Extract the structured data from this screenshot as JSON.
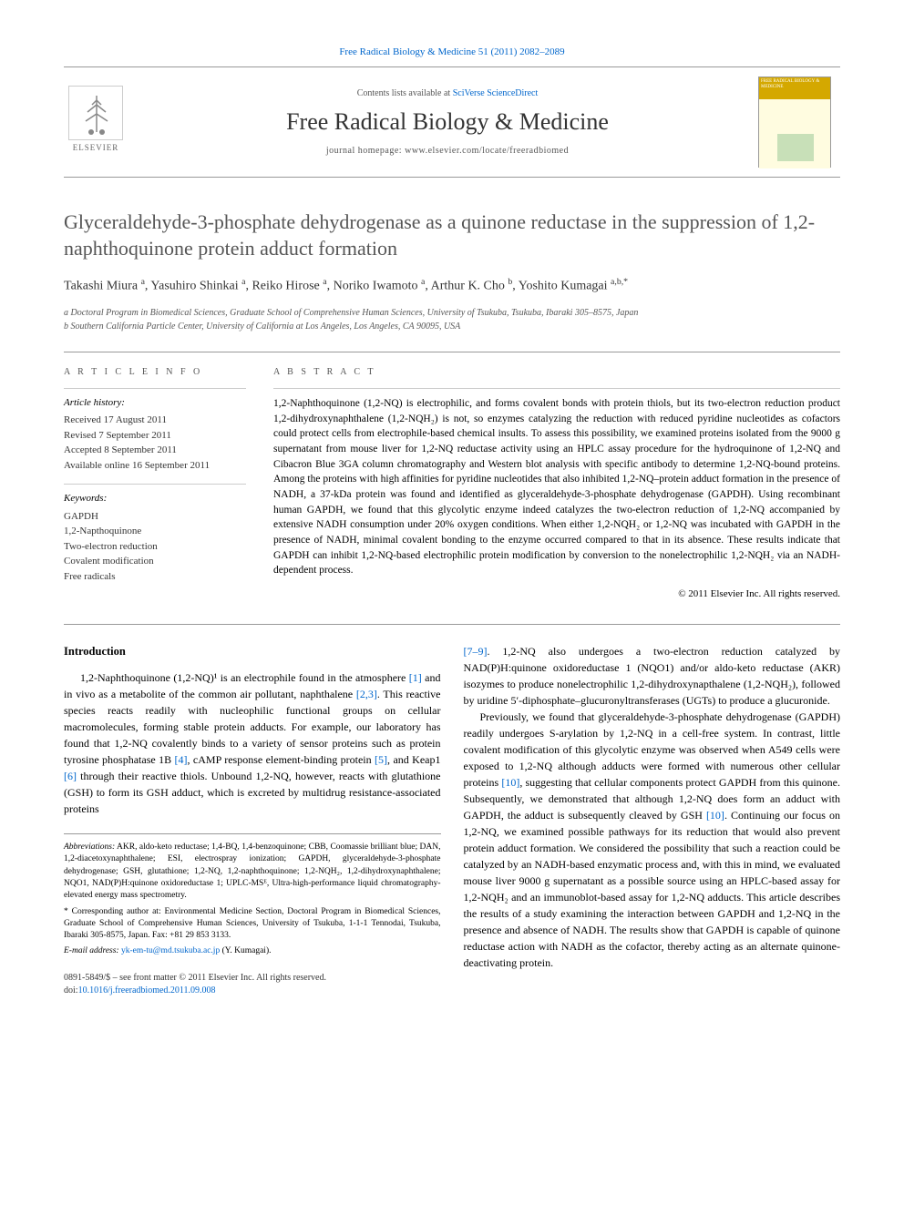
{
  "top_link_text": "Free Radical Biology & Medicine 51 (2011) 2082–2089",
  "masthead": {
    "contents_prefix": "Contents lists available at ",
    "contents_link": "SciVerse ScienceDirect",
    "journal_name": "Free Radical Biology & Medicine",
    "homepage_prefix": "journal homepage: ",
    "homepage_url": "www.elsevier.com/locate/freeradbiomed",
    "elsevier_label": "ELSEVIER",
    "cover_header_text": "FREE RADICAL BIOLOGY & MEDICINE"
  },
  "article": {
    "title": "Glyceraldehyde-3-phosphate dehydrogenase as a quinone reductase in the suppression of 1,2-naphthoquinone protein adduct formation",
    "authors_html": "Takashi Miura <sup>a</sup>, Yasuhiro Shinkai <sup>a</sup>, Reiko Hirose <sup>a</sup>, Noriko Iwamoto <sup>a</sup>, Arthur K. Cho <sup>b</sup>, Yoshito Kumagai <sup>a,b,*</sup>",
    "affiliations": [
      "a  Doctoral Program in Biomedical Sciences, Graduate School of Comprehensive Human Sciences, University of Tsukuba, Tsukuba, Ibaraki 305–8575, Japan",
      "b  Southern California Particle Center, University of California at Los Angeles, Los Angeles, CA 90095, USA"
    ]
  },
  "article_info": {
    "heading": "A R T I C L E   I N F O",
    "history_title": "Article history:",
    "history": [
      "Received 17 August 2011",
      "Revised 7 September 2011",
      "Accepted 8 September 2011",
      "Available online 16 September 2011"
    ],
    "keywords_title": "Keywords:",
    "keywords": [
      "GAPDH",
      "1,2-Napthoquinone",
      "Two-electron reduction",
      "Covalent modification",
      "Free radicals"
    ]
  },
  "abstract": {
    "heading": "A B S T R A C T",
    "text": "1,2-Naphthoquinone (1,2-NQ) is electrophilic, and forms covalent bonds with protein thiols, but its two-electron reduction product 1,2-dihydroxynaphthalene (1,2-NQH₂) is not, so enzymes catalyzing the reduction with reduced pyridine nucleotides as cofactors could protect cells from electrophile-based chemical insults. To assess this possibility, we examined proteins isolated from the 9000 g supernatant from mouse liver for 1,2-NQ reductase activity using an HPLC assay procedure for the hydroquinone of 1,2-NQ and Cibacron Blue 3GA column chromatography and Western blot analysis with specific antibody to determine 1,2-NQ-bound proteins. Among the proteins with high affinities for pyridine nucleotides that also inhibited 1,2-NQ–protein adduct formation in the presence of NADH, a 37-kDa protein was found and identified as glyceraldehyde-3-phosphate dehydrogenase (GAPDH). Using recombinant human GAPDH, we found that this glycolytic enzyme indeed catalyzes the two-electron reduction of 1,2-NQ accompanied by extensive NADH consumption under 20% oxygen conditions. When either 1,2-NQH₂ or 1,2-NQ was incubated with GAPDH in the presence of NADH, minimal covalent bonding to the enzyme occurred compared to that in its absence. These results indicate that GAPDH can inhibit 1,2-NQ-based electrophilic protein modification by conversion to the nonelectrophilic 1,2-NQH₂ via an NADH-dependent process.",
    "copyright": "© 2011 Elsevier Inc. All rights reserved."
  },
  "body": {
    "intro_heading": "Introduction",
    "col1_paras": [
      "1,2-Naphthoquinone (1,2-NQ)¹ is an electrophile found in the atmosphere [1] and in vivo as a metabolite of the common air pollutant, naphthalene [2,3]. This reactive species reacts readily with nucleophilic functional groups on cellular macromolecules, forming stable protein adducts. For example, our laboratory has found that 1,2-NQ covalently binds to a variety of sensor proteins such as protein tyrosine phosphatase 1B [4], cAMP response element-binding protein [5], and Keap1 [6] through their reactive thiols. Unbound 1,2-NQ, however, reacts with glutathione (GSH) to form its GSH adduct, which is excreted by multidrug resistance-associated proteins"
    ],
    "col2_paras": [
      "[7–9]. 1,2-NQ also undergoes a two-electron reduction catalyzed by NAD(P)H:quinone oxidoreductase 1 (NQO1) and/or aldo-keto reductase (AKR) isozymes to produce nonelectrophilic 1,2-dihydroxynapthalene (1,2-NQH₂), followed by uridine 5′-diphosphate–glucuronyltransferases (UGTs) to produce a glucuronide.",
      "Previously, we found that glyceraldehyde-3-phosphate dehydrogenase (GAPDH) readily undergoes S-arylation by 1,2-NQ in a cell-free system. In contrast, little covalent modification of this glycolytic enzyme was observed when A549 cells were exposed to 1,2-NQ although adducts were formed with numerous other cellular proteins [10], suggesting that cellular components protect GAPDH from this quinone. Subsequently, we demonstrated that although 1,2-NQ does form an adduct with GAPDH, the adduct is subsequently cleaved by GSH [10]. Continuing our focus on 1,2-NQ, we examined possible pathways for its reduction that would also prevent protein adduct formation. We considered the possibility that such a reaction could be catalyzed by an NADH-based enzymatic process and, with this in mind, we evaluated mouse liver 9000 g supernatant as a possible source using an HPLC-based assay for 1,2-NQH₂ and an immunoblot-based assay for 1,2-NQ adducts. This article describes the results of a study examining the interaction between GAPDH and 1,2-NQ in the presence and absence of NADH. The results show that GAPDH is capable of quinone reductase action with NADH as the cofactor, thereby acting as an alternate quinone-deactivating protein."
    ]
  },
  "footnotes": {
    "abbrev_label": "Abbreviations:",
    "abbrev_text": " AKR, aldo-keto reductase; 1,4-BQ, 1,4-benzoquinone; CBB, Coomassie brilliant blue; DAN, 1,2-diacetoxynaphthalene; ESI, electrospray ionization; GAPDH, glyceraldehyde-3-phosphate dehydrogenase; GSH, glutathione; 1,2-NQ, 1,2-naphthoquinone; 1,2-NQH₂, 1,2-dihydroxynaphthalene; NQO1, NAD(P)H:quinone oxidoreductase 1; UPLC-MSᴱ, Ultra-high-performance liquid chromatography-elevated energy mass spectrometry.",
    "corresp_label": "* Corresponding author at:",
    "corresp_text": " Environmental Medicine Section, Doctoral Program in Biomedical Sciences, Graduate School of Comprehensive Human Sciences, University of Tsukuba, 1-1-1 Tennodai, Tsukuba, Ibaraki 305-8575, Japan. Fax: +81 29 853 3133.",
    "email_label": "E-mail address:",
    "email": "yk-em-tu@md.tsukuba.ac.jp",
    "email_suffix": " (Y. Kumagai)."
  },
  "bottom": {
    "issn_line": "0891-5849/$ – see front matter © 2011 Elsevier Inc. All rights reserved.",
    "doi_prefix": "doi:",
    "doi": "10.1016/j.freeradbiomed.2011.09.008"
  },
  "colors": {
    "link": "#0066cc",
    "text": "#000000",
    "heading_gray": "#555555",
    "border": "#999999",
    "cover_bg": "#fffce0",
    "cover_header": "#d4a800"
  }
}
